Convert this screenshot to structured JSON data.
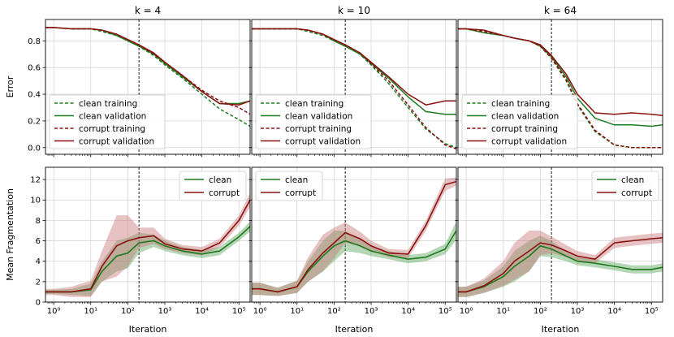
{
  "chart_data": {
    "type": "line",
    "xscale": "log",
    "xlim": [
      0.6,
      200000
    ],
    "x_ticks": [
      1,
      10,
      100,
      1000,
      10000,
      100000
    ],
    "x_tick_labels": [
      "10⁰",
      "10¹",
      "10²",
      "10³",
      "10⁴",
      "10⁵"
    ],
    "vline_x": 200,
    "xlabel": "Iteration",
    "grid": true,
    "colors": {
      "clean": "#1e7a1e",
      "corrupt": "#8b1010",
      "clean_band": "#5aa65a",
      "corrupt_band": "#c77777"
    },
    "columns": [
      {
        "title": "k = 4"
      },
      {
        "title": "k = 10"
      },
      {
        "title": "k = 64"
      }
    ],
    "error_row": {
      "ylabel": "Error",
      "ylim": [
        -0.05,
        0.96
      ],
      "y_ticks": [
        0.0,
        0.2,
        0.4,
        0.6,
        0.8
      ],
      "y_tick_labels": [
        "0.0",
        "0.2",
        "0.4",
        "0.6",
        "0.8"
      ],
      "legend": [
        "clean training",
        "clean validation",
        "corrupt training",
        "corrupt validation"
      ],
      "legend_position": "lower-left",
      "x": [
        0.6,
        1,
        3,
        10,
        20,
        50,
        100,
        200,
        500,
        1000,
        3000,
        10000,
        30000,
        100000,
        200000
      ],
      "panels": [
        {
          "clean_training": [
            0.9,
            0.9,
            0.89,
            0.89,
            0.87,
            0.84,
            0.8,
            0.76,
            0.69,
            0.62,
            0.52,
            0.4,
            0.29,
            0.21,
            0.16
          ],
          "clean_validation": [
            0.9,
            0.9,
            0.89,
            0.89,
            0.88,
            0.84,
            0.8,
            0.76,
            0.7,
            0.63,
            0.53,
            0.42,
            0.33,
            0.33,
            0.35
          ],
          "corrupt_training": [
            0.9,
            0.9,
            0.89,
            0.89,
            0.88,
            0.85,
            0.81,
            0.77,
            0.7,
            0.64,
            0.54,
            0.43,
            0.35,
            0.3,
            0.25
          ],
          "corrupt_validation": [
            0.9,
            0.9,
            0.89,
            0.89,
            0.88,
            0.85,
            0.81,
            0.77,
            0.71,
            0.64,
            0.54,
            0.42,
            0.33,
            0.32,
            0.35
          ]
        },
        {
          "clean_training": [
            0.89,
            0.89,
            0.89,
            0.89,
            0.87,
            0.84,
            0.8,
            0.76,
            0.7,
            0.62,
            0.48,
            0.3,
            0.14,
            0.03,
            0.0
          ],
          "clean_validation": [
            0.89,
            0.89,
            0.89,
            0.89,
            0.88,
            0.85,
            0.8,
            0.76,
            0.7,
            0.63,
            0.52,
            0.38,
            0.27,
            0.25,
            0.25
          ],
          "corrupt_training": [
            0.89,
            0.89,
            0.89,
            0.89,
            0.88,
            0.85,
            0.81,
            0.77,
            0.71,
            0.63,
            0.5,
            0.32,
            0.15,
            0.02,
            -0.01
          ],
          "corrupt_validation": [
            0.89,
            0.89,
            0.89,
            0.89,
            0.88,
            0.85,
            0.81,
            0.77,
            0.71,
            0.64,
            0.53,
            0.4,
            0.32,
            0.35,
            0.35
          ]
        },
        {
          "clean_training": [
            0.89,
            0.89,
            0.88,
            0.84,
            0.82,
            0.8,
            0.76,
            0.67,
            0.5,
            0.32,
            0.12,
            0.02,
            0.0,
            0.0,
            0.0
          ],
          "clean_validation": [
            0.89,
            0.89,
            0.86,
            0.84,
            0.82,
            0.8,
            0.76,
            0.68,
            0.53,
            0.37,
            0.22,
            0.17,
            0.17,
            0.16,
            0.17
          ],
          "corrupt_training": [
            0.89,
            0.89,
            0.87,
            0.84,
            0.82,
            0.8,
            0.76,
            0.67,
            0.51,
            0.33,
            0.13,
            0.02,
            0.0,
            0.0,
            0.0
          ],
          "corrupt_validation": [
            0.89,
            0.89,
            0.88,
            0.84,
            0.82,
            0.8,
            0.77,
            0.69,
            0.55,
            0.4,
            0.26,
            0.25,
            0.26,
            0.25,
            0.24
          ]
        }
      ]
    },
    "frag_row": {
      "ylabel": "Mean Fragmentation",
      "ylim": [
        0,
        13.2
      ],
      "y_ticks": [
        0,
        2,
        4,
        6,
        8,
        10,
        12
      ],
      "y_tick_labels": [
        "0",
        "2",
        "4",
        "6",
        "8",
        "10",
        "12"
      ],
      "legend": [
        "clean",
        "corrupt"
      ],
      "legend_position": "top-right",
      "x": [
        0.6,
        1,
        3,
        10,
        20,
        50,
        100,
        200,
        500,
        1000,
        3000,
        10000,
        30000,
        100000,
        200000
      ],
      "panels": [
        {
          "clean": [
            1.0,
            1.0,
            1.0,
            1.2,
            3.0,
            4.5,
            4.8,
            5.8,
            6.0,
            5.5,
            5.0,
            4.7,
            5.0,
            6.4,
            7.4
          ],
          "clean_err": [
            0.2,
            0.2,
            0.3,
            0.6,
            1.0,
            1.5,
            1.5,
            1.0,
            0.6,
            0.5,
            0.4,
            0.4,
            0.4,
            0.4,
            0.5
          ],
          "corrupt": [
            1.0,
            1.0,
            1.0,
            1.3,
            3.5,
            5.5,
            6.0,
            6.3,
            6.5,
            5.7,
            5.2,
            5.0,
            5.8,
            8.0,
            10.0
          ],
          "corrupt_err": [
            0.3,
            0.3,
            0.5,
            0.8,
            1.5,
            3.0,
            2.5,
            1.0,
            0.8,
            0.5,
            0.4,
            0.4,
            0.4,
            0.5,
            0.7
          ]
        },
        {
          "clean": [
            1.3,
            1.3,
            1.0,
            1.5,
            3.0,
            4.5,
            5.5,
            6.0,
            5.5,
            5.0,
            4.6,
            4.2,
            4.4,
            5.2,
            7.0
          ],
          "clean_err": [
            0.6,
            0.6,
            0.4,
            0.6,
            1.0,
            1.5,
            1.5,
            1.0,
            0.7,
            0.5,
            0.4,
            0.4,
            0.4,
            0.5,
            0.9
          ],
          "corrupt": [
            1.3,
            1.3,
            1.0,
            1.5,
            3.2,
            4.8,
            5.8,
            6.8,
            6.2,
            5.5,
            4.8,
            4.7,
            7.5,
            11.5,
            11.8
          ],
          "corrupt_err": [
            0.6,
            0.6,
            0.4,
            0.6,
            1.2,
            1.8,
            1.5,
            1.0,
            0.7,
            0.5,
            0.4,
            0.4,
            0.5,
            0.6,
            0.4
          ]
        },
        {
          "clean": [
            1.0,
            1.0,
            1.5,
            2.5,
            3.5,
            4.5,
            5.5,
            5.2,
            4.5,
            4.0,
            3.8,
            3.5,
            3.2,
            3.2,
            3.4
          ],
          "clean_err": [
            0.5,
            0.5,
            0.6,
            1.0,
            1.5,
            1.5,
            1.0,
            0.8,
            0.5,
            0.4,
            0.4,
            0.4,
            0.4,
            0.4,
            0.4
          ],
          "corrupt": [
            1.0,
            1.0,
            1.6,
            2.8,
            4.0,
            5.0,
            5.8,
            5.6,
            5.0,
            4.5,
            4.2,
            5.8,
            6.0,
            6.2,
            6.3
          ],
          "corrupt_err": [
            0.5,
            0.5,
            0.7,
            1.2,
            1.8,
            2.0,
            1.2,
            0.8,
            0.6,
            0.5,
            0.4,
            0.5,
            0.5,
            0.5,
            0.5
          ]
        }
      ]
    }
  }
}
